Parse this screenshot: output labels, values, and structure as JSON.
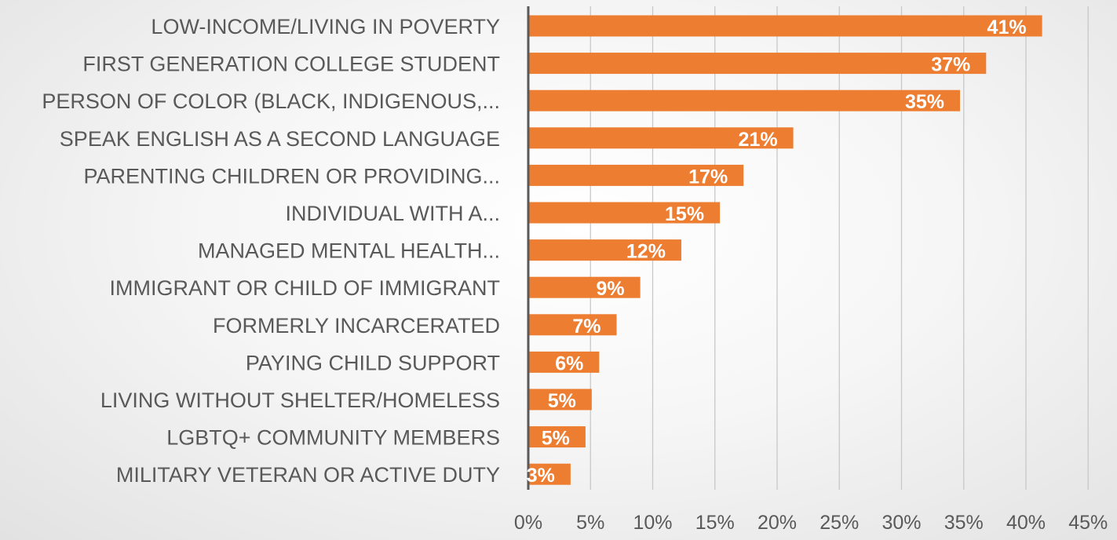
{
  "chart_data": {
    "type": "bar",
    "orientation": "horizontal",
    "title": "",
    "xlabel": "",
    "ylabel": "",
    "categories": [
      "LOW-INCOME/LIVING IN POVERTY",
      "FIRST GENERATION COLLEGE STUDENT",
      "PERSON OF COLOR (BLACK, INDIGENOUS,...",
      "SPEAK ENGLISH AS A SECOND LANGUAGE",
      "PARENTING CHILDREN OR PROVIDING...",
      "INDIVIDUAL WITH A...",
      "MANAGED MENTAL HEALTH...",
      "IMMIGRANT OR CHILD OF IMMIGRANT",
      "FORMERLY INCARCERATED",
      "PAYING CHILD SUPPORT",
      "LIVING WITHOUT SHELTER/HOMELESS",
      "LGBTQ+ COMMUNITY MEMBERS",
      "MILITARY VETERAN OR ACTIVE DUTY"
    ],
    "values": [
      41.3,
      36.8,
      34.7,
      21.3,
      17.3,
      15.4,
      12.3,
      9.0,
      7.1,
      5.7,
      5.1,
      4.6,
      3.4
    ],
    "data_labels": [
      "41%",
      "37%",
      "35%",
      "21%",
      "17%",
      "15%",
      "12%",
      "9%",
      "7%",
      "6%",
      "5%",
      "5%",
      "3%"
    ],
    "xlim": [
      0,
      45
    ],
    "x_ticks": [
      0,
      5,
      10,
      15,
      20,
      25,
      30,
      35,
      40,
      45
    ],
    "x_tick_labels": [
      "0%",
      "5%",
      "10%",
      "15%",
      "20%",
      "25%",
      "30%",
      "35%",
      "40%",
      "45%"
    ],
    "grid": true,
    "legend": "none",
    "bar_color": "#ED7D31",
    "gridline_color": "#C8C8C8",
    "axis_color": "#595959",
    "text_color": "#595959",
    "label_color": "#FFFFFF"
  }
}
